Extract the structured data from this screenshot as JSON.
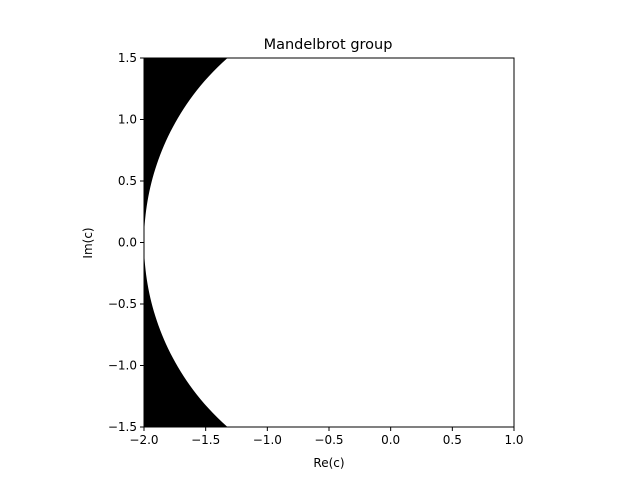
{
  "chart_data": {
    "type": "heatmap",
    "title": "Mandelbrot group",
    "xlabel": "Re(c)",
    "ylabel": "Im(c)",
    "xlim": [
      -2.0,
      1.0
    ],
    "ylim": [
      -1.5,
      1.5
    ],
    "xticks": [
      -2.0,
      -1.5,
      -1.0,
      -0.5,
      0.0,
      0.5,
      1.0
    ],
    "yticks": [
      -1.5,
      -1.0,
      -0.5,
      0.0,
      0.5,
      1.0,
      1.5
    ],
    "xtick_labels": [
      "−2.0",
      "−1.5",
      "−1.0",
      "−0.5",
      "0.0",
      "0.5",
      "1.0"
    ],
    "ytick_labels": [
      "−1.5",
      "−1.0",
      "−0.5",
      "0.0",
      "0.5",
      "1.0",
      "1.5"
    ],
    "grid": false,
    "region_boundary": {
      "description_values": "points where |c| = 2 (escape boundary); left region is filled",
      "center": [
        0.0,
        0.0
      ],
      "radius": 2.0
    },
    "fill_color_outside": "#000000",
    "fill_color_inside": "#ffffff"
  }
}
